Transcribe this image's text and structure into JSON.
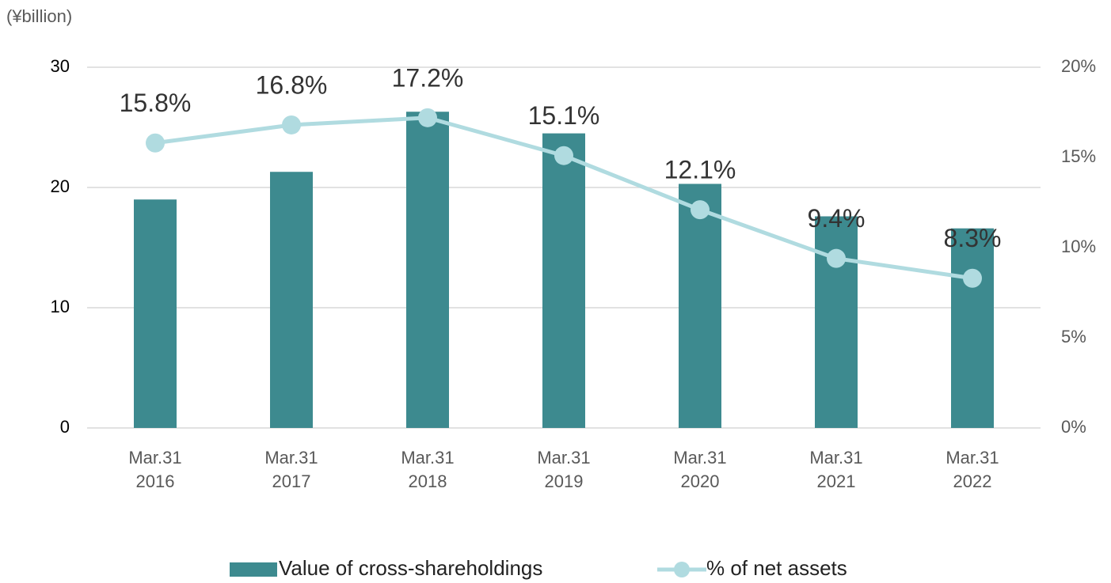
{
  "chart_data": {
    "type": "bar_line",
    "unit_label": "(¥billion)",
    "categories": [
      [
        "Mar.31",
        "2016"
      ],
      [
        "Mar.31",
        "2017"
      ],
      [
        "Mar.31",
        "2018"
      ],
      [
        "Mar.31",
        "2019"
      ],
      [
        "Mar.31",
        "2020"
      ],
      [
        "Mar.31",
        "2021"
      ],
      [
        "Mar.31",
        "2022"
      ]
    ],
    "series": [
      {
        "name": "Value of cross-shareholdings",
        "type": "bar",
        "color": "#3d8a8f",
        "values": [
          19.0,
          21.3,
          26.3,
          24.5,
          20.3,
          17.6,
          16.6
        ]
      },
      {
        "name": "% of net assets",
        "type": "line",
        "axis": "y2",
        "color": "#b0dbe0",
        "values": [
          15.8,
          16.8,
          17.2,
          15.1,
          12.1,
          9.4,
          8.3
        ],
        "value_labels": [
          "15.8%",
          "16.8%",
          "17.2%",
          "15.1%",
          "12.1%",
          "9.4%",
          "8.3%"
        ]
      }
    ],
    "ylim": [
      0,
      30
    ],
    "yticks": [
      0,
      10,
      20,
      30
    ],
    "y2lim": [
      0,
      20
    ],
    "y2ticks": [
      {
        "value": 0,
        "label": "0%"
      },
      {
        "value": 5,
        "label": "5%"
      },
      {
        "value": 10,
        "label": "10%"
      },
      {
        "value": 15,
        "label": "15%"
      },
      {
        "value": 20,
        "label": "20%"
      }
    ],
    "grid": true
  }
}
